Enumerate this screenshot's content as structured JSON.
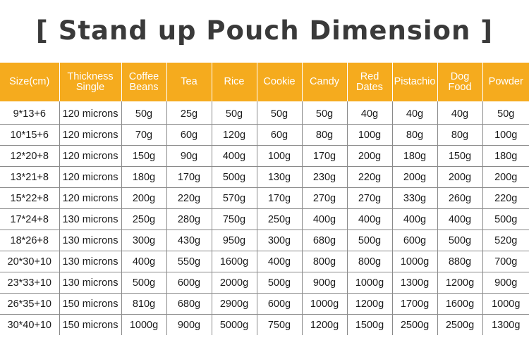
{
  "title": "[ Stand up Pouch Dimension ]",
  "table": {
    "headers": [
      "Size(cm)",
      "Thickness Single",
      "Coffee Beans",
      "Tea",
      "Rice",
      "Cookie",
      "Candy",
      "Red Dates",
      "Pistachio",
      "Dog Food",
      "Powder"
    ],
    "header_color": "#f5ab1e",
    "rows": [
      [
        "9*13+6",
        "120 microns",
        "50g",
        "25g",
        "50g",
        "50g",
        "50g",
        "40g",
        "40g",
        "40g",
        "50g"
      ],
      [
        "10*15+6",
        "120 microns",
        "70g",
        "60g",
        "120g",
        "60g",
        "80g",
        "100g",
        "80g",
        "80g",
        "100g"
      ],
      [
        "12*20+8",
        "120 microns",
        "150g",
        "90g",
        "400g",
        "100g",
        "170g",
        "200g",
        "180g",
        "150g",
        "180g"
      ],
      [
        "13*21+8",
        "120 microns",
        "180g",
        "170g",
        "500g",
        "130g",
        "230g",
        "220g",
        "200g",
        "200g",
        "200g"
      ],
      [
        "15*22+8",
        "120 microns",
        "200g",
        "220g",
        "570g",
        "170g",
        "270g",
        "270g",
        "330g",
        "260g",
        "220g"
      ],
      [
        "17*24+8",
        "130 microns",
        "250g",
        "280g",
        "750g",
        "250g",
        "400g",
        "400g",
        "400g",
        "400g",
        "500g"
      ],
      [
        "18*26+8",
        "130 microns",
        "300g",
        "430g",
        "950g",
        "300g",
        "680g",
        "500g",
        "600g",
        "500g",
        "520g"
      ],
      [
        "20*30+10",
        "130 microns",
        "400g",
        "550g",
        "1600g",
        "400g",
        "800g",
        "800g",
        "1000g",
        "880g",
        "700g"
      ],
      [
        "23*33+10",
        "130 microns",
        "500g",
        "600g",
        "2000g",
        "500g",
        "900g",
        "1000g",
        "1300g",
        "1200g",
        "900g"
      ],
      [
        "26*35+10",
        "150 microns",
        "810g",
        "680g",
        "2900g",
        "600g",
        "1000g",
        "1200g",
        "1700g",
        "1600g",
        "1000g"
      ],
      [
        "30*40+10",
        "150 microns",
        "1000g",
        "900g",
        "5000g",
        "750g",
        "1200g",
        "1500g",
        "2500g",
        "2500g",
        "1300g"
      ]
    ]
  }
}
